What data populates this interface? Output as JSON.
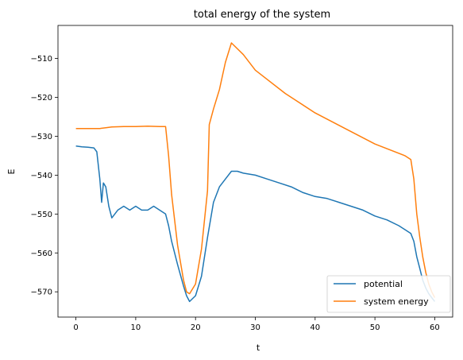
{
  "chart_data": {
    "type": "line",
    "title": "total energy of the system",
    "xlabel": "t",
    "ylabel": "E",
    "xlim": [
      -3,
      63
    ],
    "ylim": [
      -576.5,
      -501.5
    ],
    "xticks": [
      0,
      10,
      20,
      30,
      40,
      50,
      60
    ],
    "yticks": [
      -570,
      -560,
      -550,
      -540,
      -530,
      -520,
      -510
    ],
    "xtick_labels": [
      "0",
      "10",
      "20",
      "30",
      "40",
      "50",
      "60"
    ],
    "ytick_labels": [
      "−570",
      "−560",
      "−550",
      "−540",
      "−530",
      "−520",
      "−510"
    ],
    "grid": false,
    "legend_position": "lower-right",
    "series": [
      {
        "name": "potential",
        "color": "#1f77b4",
        "x": [
          0,
          1,
          2,
          3,
          3.5,
          4,
          4.3,
          4.6,
          5,
          5.5,
          6,
          7,
          8,
          9,
          10,
          11,
          12,
          13,
          14,
          15,
          15.5,
          16,
          17,
          18,
          18.5,
          19,
          20,
          21,
          22,
          23,
          24,
          25,
          26,
          27,
          28,
          30,
          32,
          34,
          36,
          38,
          40,
          42,
          44,
          46,
          48,
          50,
          52,
          54,
          55,
          56,
          56.5,
          57,
          57.5,
          58,
          58.5,
          59,
          59.5,
          60
        ],
        "y": [
          -532.5,
          -532.7,
          -532.8,
          -533,
          -534,
          -541,
          -547,
          -542,
          -543,
          -548,
          -551,
          -549,
          -548,
          -549,
          -548,
          -549,
          -549,
          -548,
          -549,
          -550,
          -553,
          -557,
          -563,
          -568.5,
          -571,
          -572.5,
          -571,
          -566,
          -556,
          -547,
          -543,
          -541,
          -539,
          -539,
          -539.5,
          -540,
          -541,
          -542,
          -543,
          -544.5,
          -545.5,
          -546,
          -547,
          -548,
          -549,
          -550.5,
          -551.5,
          -553,
          -554,
          -555,
          -557,
          -561,
          -564,
          -567,
          -569,
          -570.5,
          -571.5,
          -572.5
        ]
      },
      {
        "name": "system energy",
        "color": "#ff7f0e",
        "x": [
          0,
          2,
          4,
          5,
          6,
          8,
          10,
          12,
          14,
          15,
          15.5,
          16,
          17,
          18,
          18.5,
          19,
          20,
          21,
          22,
          22.3,
          23,
          24,
          25,
          26,
          28,
          30,
          35,
          40,
          45,
          50,
          55,
          56,
          56.5,
          57,
          57.5,
          58,
          58.5,
          59,
          59.5,
          60
        ],
        "y": [
          -528,
          -528,
          -528,
          -527.8,
          -527.6,
          -527.5,
          -527.5,
          -527.4,
          -527.5,
          -527.5,
          -535,
          -545,
          -558,
          -567,
          -570,
          -570.5,
          -568,
          -559,
          -544,
          -527,
          -523,
          -518,
          -511,
          -506,
          -509,
          -513,
          -519,
          -524,
          -528,
          -532,
          -535,
          -536,
          -541,
          -550,
          -556,
          -561,
          -565,
          -568,
          -570,
          -571.5
        ]
      }
    ]
  }
}
